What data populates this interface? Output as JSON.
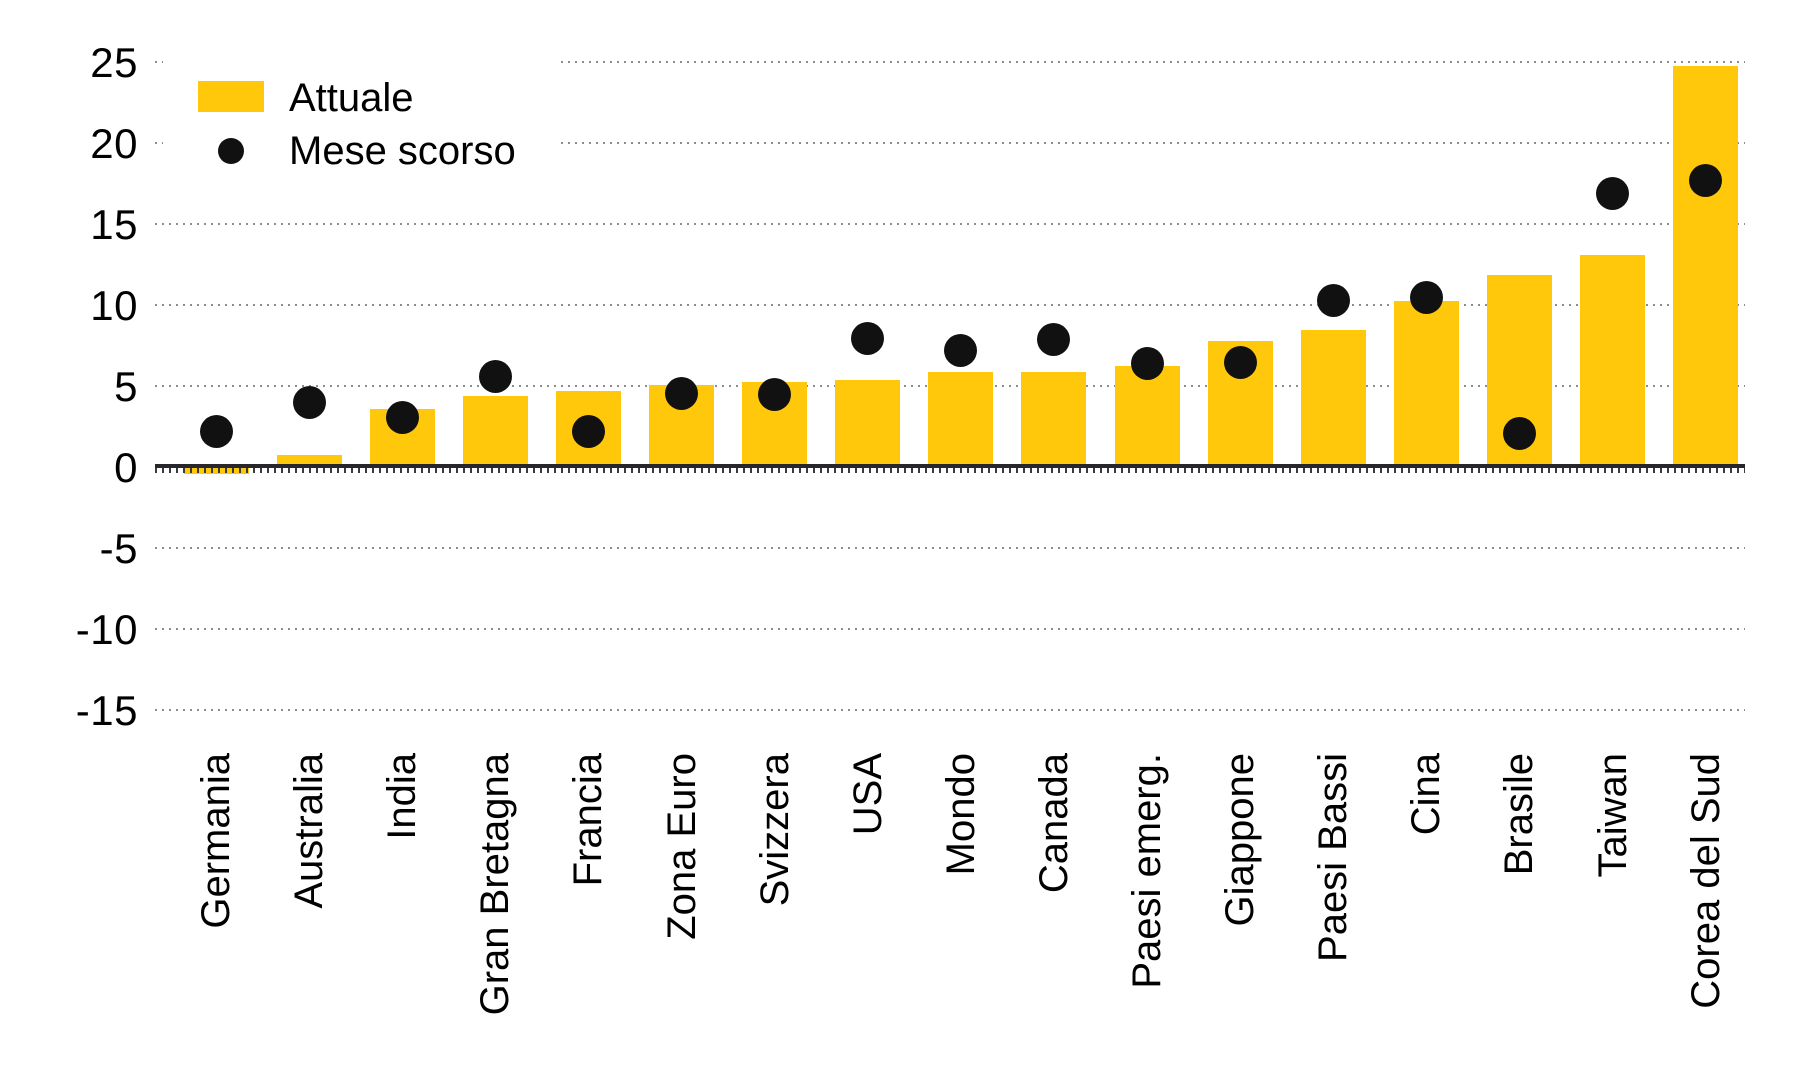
{
  "chart_data": {
    "type": "bar",
    "title": "",
    "categories": [
      "Germania",
      "Australia",
      "India",
      "Gran Bretagna",
      "Francia",
      "Zona Euro",
      "Svizzera",
      "USA",
      "Mondo",
      "Canada",
      "Paesi emerg.",
      "Giappone",
      "Paesi Bassi",
      "Cina",
      "Brasile",
      "Taiwan",
      "Corea del Sud"
    ],
    "series": [
      {
        "name": "Attuale",
        "type": "bar",
        "color": "#FFC80A",
        "values": [
          -0.3,
          0.7,
          3.5,
          4.3,
          4.6,
          5.0,
          5.2,
          5.3,
          5.8,
          5.8,
          6.2,
          7.7,
          8.4,
          10.2,
          11.8,
          13.0,
          24.7
        ]
      },
      {
        "name": "Mese scorso",
        "type": "scatter",
        "color": "#111111",
        "values": [
          2.1,
          3.9,
          3.0,
          5.5,
          2.1,
          4.5,
          4.4,
          7.9,
          7.1,
          7.8,
          6.3,
          6.4,
          10.2,
          10.4,
          2.0,
          16.8,
          17.6
        ]
      }
    ],
    "ylim": [
      -15,
      25
    ],
    "yticks": [
      25,
      20,
      15,
      10,
      5,
      0,
      -5,
      -10,
      -15
    ],
    "xlabel": "",
    "ylabel": "",
    "grid": "horizontal-dotted",
    "legend_position": "top-left"
  },
  "legend": {
    "attuale": "Attuale",
    "mese_scorso": "Mese scorso"
  },
  "colors": {
    "bar": "#FFC80A",
    "dot": "#111111",
    "axis": "#26262B",
    "grid_dots": "#8C8C8C",
    "background": "#FFFFFF",
    "text": "#000000"
  }
}
